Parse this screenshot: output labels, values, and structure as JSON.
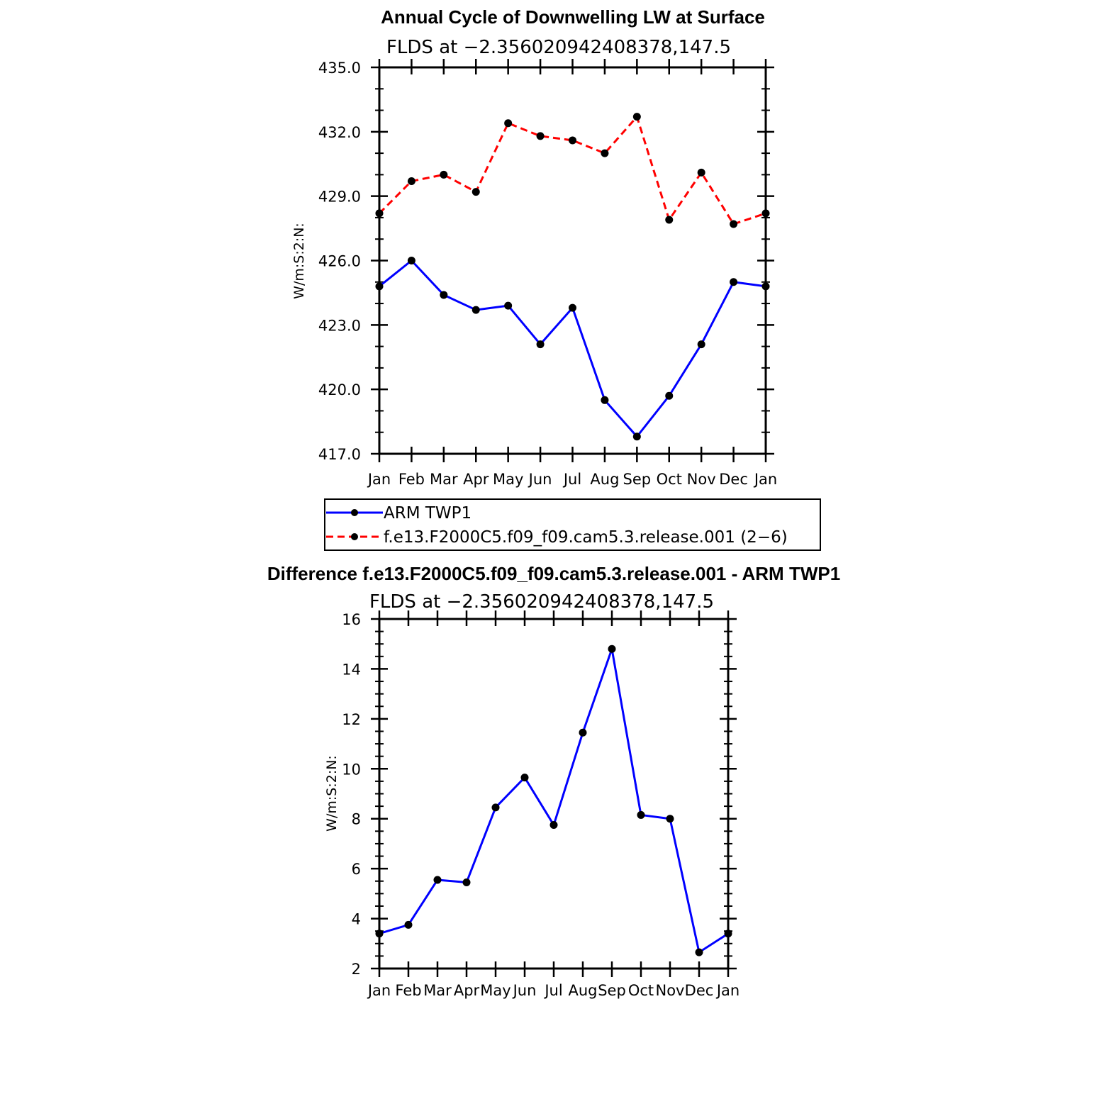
{
  "chart_data": [
    {
      "type": "line",
      "title": "Annual Cycle of Downwelling LW at Surface",
      "subtitle": "FLDS at −2.356020942408378,147.5",
      "xlabel": "",
      "ylabel": "W/m:S:2:N:",
      "categories": [
        "Jan",
        "Feb",
        "Mar",
        "Apr",
        "May",
        "Jun",
        "Jul",
        "Aug",
        "Sep",
        "Oct",
        "Nov",
        "Dec",
        "Jan"
      ],
      "ylim": [
        417.0,
        435.0
      ],
      "yticks": [
        "417.0",
        "420.0",
        "423.0",
        "426.0",
        "429.0",
        "432.0",
        "435.0"
      ],
      "grid": false,
      "series": [
        {
          "name": "ARM TWP1",
          "color": "#0000ff",
          "style": "solid",
          "marker": "dot",
          "values": [
            424.8,
            426.0,
            424.4,
            423.7,
            423.9,
            422.1,
            423.8,
            419.5,
            417.8,
            419.7,
            422.1,
            425.0,
            424.8
          ]
        },
        {
          "name": "f.e13.F2000C5.f09_f09.cam5.3.release.001 (2−6)",
          "color": "#ff0000",
          "style": "dashed",
          "marker": "dot",
          "values": [
            428.2,
            429.7,
            430.0,
            429.2,
            432.4,
            431.8,
            431.6,
            431.0,
            432.7,
            427.9,
            430.1,
            427.7,
            428.2
          ]
        }
      ],
      "legend": {
        "placement": "bottom",
        "entries": [
          "ARM TWP1",
          "f.e13.F2000C5.f09_f09.cam5.3.release.001 (2−6)"
        ]
      }
    },
    {
      "type": "line",
      "title": "Difference f.e13.F2000C5.f09_f09.cam5.3.release.001 - ARM TWP1",
      "subtitle": "FLDS at −2.356020942408378,147.5",
      "xlabel": "",
      "ylabel": "W/m:S:2:N:",
      "categories": [
        "Jan",
        "Feb",
        "Mar",
        "Apr",
        "May",
        "Jun",
        "Jul",
        "Aug",
        "Sep",
        "Oct",
        "Nov",
        "Dec",
        "Jan"
      ],
      "ylim": [
        2,
        16
      ],
      "yticks": [
        "2",
        "4",
        "6",
        "8",
        "10",
        "12",
        "14",
        "16"
      ],
      "grid": false,
      "series": [
        {
          "name": "Difference",
          "color": "#0000ff",
          "style": "solid",
          "marker": "dot",
          "values": [
            3.4,
            3.75,
            5.55,
            5.45,
            8.45,
            9.65,
            7.75,
            11.45,
            14.8,
            8.15,
            8.0,
            2.65,
            3.4
          ]
        }
      ]
    }
  ]
}
